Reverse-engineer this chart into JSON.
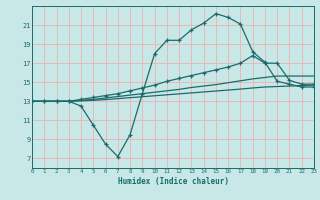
{
  "xlabel": "Humidex (Indice chaleur)",
  "background_color": "#c8e8e8",
  "grid_color": "#e8b8b8",
  "line_color": "#1a6b6b",
  "x_values": [
    0,
    1,
    2,
    3,
    4,
    5,
    6,
    7,
    8,
    9,
    10,
    11,
    12,
    13,
    14,
    15,
    16,
    17,
    18,
    19,
    20,
    21,
    22,
    23
  ],
  "line1_y": [
    13,
    13,
    13,
    13,
    12.5,
    10.5,
    8.5,
    7.2,
    9.5,
    13.8,
    18.0,
    19.4,
    19.4,
    20.5,
    21.2,
    22.2,
    21.8,
    21.1,
    18.2,
    17.1,
    15.1,
    14.8,
    14.5,
    14.5
  ],
  "line2_y": [
    13,
    13,
    13,
    13,
    13.2,
    13.4,
    13.6,
    13.8,
    14.1,
    14.4,
    14.7,
    15.1,
    15.4,
    15.7,
    16.0,
    16.3,
    16.6,
    17.0,
    17.8,
    17.0,
    17.0,
    15.2,
    14.8,
    14.8
  ],
  "line3_y": [
    13,
    13,
    13,
    13,
    13.1,
    13.2,
    13.35,
    13.5,
    13.65,
    13.8,
    13.95,
    14.1,
    14.25,
    14.45,
    14.6,
    14.75,
    14.95,
    15.15,
    15.35,
    15.5,
    15.65,
    15.65,
    15.65,
    15.65
  ],
  "line4_y": [
    13,
    13,
    13,
    13,
    13.05,
    13.1,
    13.18,
    13.28,
    13.38,
    13.48,
    13.58,
    13.68,
    13.78,
    13.88,
    13.98,
    14.08,
    14.18,
    14.28,
    14.4,
    14.5,
    14.55,
    14.6,
    14.65,
    14.7
  ],
  "ylim": [
    6,
    23
  ],
  "xlim": [
    0,
    23
  ],
  "yticks": [
    7,
    9,
    11,
    13,
    15,
    17,
    19,
    21
  ],
  "xticks": [
    0,
    1,
    2,
    3,
    4,
    5,
    6,
    7,
    8,
    9,
    10,
    11,
    12,
    13,
    14,
    15,
    16,
    17,
    18,
    19,
    20,
    21,
    22,
    23
  ]
}
